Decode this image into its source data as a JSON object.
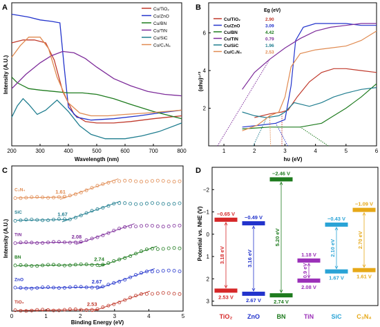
{
  "panels": {
    "A": {
      "letter": "A",
      "xlabel": "Wavelength (nm)",
      "ylabel": "Intensity (A.U.)",
      "xticks": [
        "200",
        "300",
        "400",
        "500",
        "600",
        "700",
        "800"
      ],
      "legend": [
        "Cu/TiO₂",
        "Cu/ZnO",
        "Cu/BN",
        "Cu/TiN",
        "Cu/SiC",
        "Cu/C₃N₄"
      ]
    },
    "B": {
      "letter": "B",
      "xlabel": "hυ (eV)",
      "ylabel": "(αhυ)¹ᐟ²",
      "xticks": [
        "1",
        "2",
        "3",
        "4",
        "5",
        "6"
      ],
      "yticks": [
        "2",
        "4",
        "6"
      ],
      "legend_header": "Eg (eV)",
      "legend": [
        {
          "name": "Cu/TiO₂",
          "eg": "2.90"
        },
        {
          "name": "Cu/ZnO",
          "eg": "3.09"
        },
        {
          "name": "Cu/BN",
          "eg": "4.42"
        },
        {
          "name": "Cu/TiN",
          "eg": "0.79"
        },
        {
          "name": "Cu/SiC",
          "eg": "1.96"
        },
        {
          "name": "Cu/C₃N₄",
          "eg": "2.53"
        }
      ]
    },
    "C": {
      "letter": "C",
      "xlabel": "Binding Energy (eV)",
      "ylabel": "Intensity (A.U.)",
      "xticks": [
        "0",
        "1",
        "2",
        "3",
        "4",
        "5"
      ]
    },
    "D": {
      "letter": "D",
      "ylabel": "Potential vs. NHE (V)",
      "yticks": [
        "−2",
        "−1",
        "0",
        "1",
        "2",
        "3"
      ]
    }
  },
  "chart_data": [
    {
      "panel": "A",
      "type": "line",
      "xlabel": "Wavelength (nm)",
      "ylabel": "Intensity (A.U.)",
      "xlim": [
        200,
        800
      ],
      "ylim": [
        0,
        1
      ],
      "series": [
        {
          "name": "Cu/TiO₂",
          "color": "#c0392b",
          "x": [
            200,
            240,
            280,
            320,
            350,
            380,
            420,
            460,
            500,
            560,
            620,
            700,
            800
          ],
          "y": [
            0.72,
            0.74,
            0.74,
            0.72,
            0.6,
            0.38,
            0.22,
            0.17,
            0.16,
            0.16,
            0.17,
            0.19,
            0.21
          ]
        },
        {
          "name": "Cu/ZnO",
          "color": "#2233cc",
          "x": [
            200,
            230,
            260,
            300,
            340,
            370,
            385,
            400,
            430,
            480,
            560,
            650,
            720,
            800
          ],
          "y": [
            0.92,
            0.91,
            0.9,
            0.88,
            0.87,
            0.86,
            0.55,
            0.27,
            0.2,
            0.18,
            0.19,
            0.21,
            0.23,
            0.25
          ]
        },
        {
          "name": "Cu/BN",
          "color": "#1e7b1e",
          "x": [
            200,
            220,
            260,
            300,
            350,
            400,
            450,
            500,
            560,
            620,
            700,
            800
          ],
          "y": [
            0.48,
            0.44,
            0.4,
            0.39,
            0.38,
            0.37,
            0.37,
            0.36,
            0.33,
            0.29,
            0.24,
            0.19
          ]
        },
        {
          "name": "Cu/TiN",
          "color": "#7d2b9a",
          "x": [
            200,
            250,
            300,
            340,
            380,
            420,
            460,
            500,
            560,
            620,
            680,
            740,
            800
          ],
          "y": [
            0.4,
            0.5,
            0.58,
            0.63,
            0.66,
            0.65,
            0.61,
            0.55,
            0.47,
            0.42,
            0.38,
            0.36,
            0.35
          ]
        },
        {
          "name": "Cu/SiC",
          "color": "#1f7d8f",
          "x": [
            200,
            220,
            240,
            260,
            290,
            320,
            360,
            400,
            440,
            480,
            530,
            600,
            660,
            720,
            800
          ],
          "y": [
            0.2,
            0.28,
            0.33,
            0.29,
            0.22,
            0.25,
            0.32,
            0.24,
            0.14,
            0.08,
            0.05,
            0.05,
            0.07,
            0.1,
            0.16
          ]
        },
        {
          "name": "Cu/C₃N₄",
          "color": "#e08a50",
          "x": [
            200,
            230,
            260,
            300,
            330,
            360,
            400,
            440,
            480,
            540,
            600,
            680,
            800
          ],
          "y": [
            0.62,
            0.7,
            0.76,
            0.76,
            0.68,
            0.48,
            0.3,
            0.23,
            0.21,
            0.21,
            0.22,
            0.23,
            0.25
          ]
        }
      ]
    },
    {
      "panel": "B",
      "type": "line",
      "xlabel": "hυ (eV)",
      "ylabel": "(αhυ)¹ᐟ²",
      "xlim": [
        0.5,
        6
      ],
      "ylim": [
        0,
        7.6
      ],
      "series": [
        {
          "name": "Cu/TiO₂",
          "color": "#c0392b",
          "eg": 2.9,
          "x": [
            2.0,
            2.5,
            2.9,
            3.1,
            3.4,
            3.8,
            4.2,
            4.6,
            5.0,
            5.5,
            6.0
          ],
          "y": [
            1.5,
            1.7,
            1.8,
            1.9,
            2.6,
            3.4,
            3.9,
            4.1,
            4.1,
            4.0,
            3.9
          ]
        },
        {
          "name": "Cu/ZnO",
          "color": "#2233cc",
          "eg": 3.09,
          "x": [
            1.6,
            2.2,
            2.7,
            3.0,
            3.2,
            3.35,
            3.6,
            4.0,
            4.5,
            5.0,
            5.5,
            6.0
          ],
          "y": [
            1.0,
            1.1,
            1.2,
            1.4,
            3.2,
            5.6,
            6.3,
            6.5,
            6.5,
            6.5,
            6.4,
            6.4
          ]
        },
        {
          "name": "Cu/BN",
          "color": "#1e7b1e",
          "eg": 4.42,
          "x": [
            1.6,
            2.5,
            3.5,
            4.2,
            4.6,
            5.0,
            5.5,
            6.0
          ],
          "y": [
            0.9,
            1.0,
            1.0,
            1.2,
            1.6,
            2.0,
            2.6,
            3.3
          ]
        },
        {
          "name": "Cu/TiN",
          "color": "#7d2b9a",
          "eg": 0.79,
          "x": [
            1.6,
            2.0,
            2.5,
            3.0,
            3.5,
            4.0,
            4.5,
            5.0,
            5.5,
            6.0
          ],
          "y": [
            3.0,
            3.9,
            4.6,
            5.2,
            5.7,
            6.1,
            6.3,
            6.4,
            6.5,
            6.5
          ]
        },
        {
          "name": "Cu/SiC",
          "color": "#1f7d8f",
          "eg": 1.96,
          "x": [
            1.6,
            2.0,
            2.4,
            2.8,
            3.0,
            3.3,
            3.8,
            4.2,
            4.6,
            5.0,
            5.5,
            6.0
          ],
          "y": [
            1.8,
            1.6,
            1.5,
            1.6,
            1.8,
            2.3,
            2.1,
            2.3,
            2.6,
            2.8,
            3.0,
            3.1
          ]
        },
        {
          "name": "Cu/C₃N₄",
          "color": "#e08a50",
          "eg": 2.53,
          "x": [
            1.6,
            2.1,
            2.5,
            2.8,
            3.0,
            3.2,
            3.5,
            4.0,
            4.5,
            5.0,
            5.5,
            6.0
          ],
          "y": [
            0.8,
            1.1,
            1.6,
            1.8,
            2.6,
            4.2,
            4.9,
            5.1,
            5.2,
            5.3,
            5.6,
            6.1
          ]
        }
      ]
    },
    {
      "panel": "C",
      "type": "scatter",
      "xlabel": "Binding Energy (eV)",
      "ylabel": "Intensity (A.U.)",
      "xlim": [
        0,
        5
      ],
      "series": [
        {
          "name": "C₃N₄",
          "color": "#e08a50",
          "value": 1.61
        },
        {
          "name": "SiC",
          "color": "#1f7d8f",
          "value": 1.67
        },
        {
          "name": "TiN",
          "color": "#7d2b9a",
          "value": 2.08
        },
        {
          "name": "BN",
          "color": "#1e7b1e",
          "value": 2.74
        },
        {
          "name": "ZnO",
          "color": "#2233cc",
          "value": 2.67
        },
        {
          "name": "TiO₂",
          "color": "#c0392b",
          "value": 2.53
        }
      ]
    },
    {
      "panel": "D",
      "type": "bar",
      "ylabel": "Potential vs. NHE (V)",
      "ylim": [
        -3,
        3.2
      ],
      "categories": [
        "TiO₂",
        "ZnO",
        "BN",
        "TiN",
        "SiC",
        "C₃N₄"
      ],
      "colors": [
        "#d62728",
        "#2233cc",
        "#1e7b1e",
        "#9b30b8",
        "#29a3d6",
        "#e6a817"
      ],
      "cb": [
        -0.65,
        -0.49,
        -2.46,
        1.18,
        -0.43,
        -1.09
      ],
      "vb": [
        2.53,
        2.67,
        2.74,
        2.08,
        1.67,
        1.61
      ],
      "cb_labels": [
        "−0.65 V",
        "−0.49 V",
        "−2.46 V",
        "1.18 V",
        "−0.43 V",
        "−1.09 V"
      ],
      "vb_labels": [
        "2.53 V",
        "2.67 V",
        "2.74 V",
        "2.08 V",
        "1.67 V",
        "1.61 V"
      ],
      "gap_labels": [
        "3.18 eV",
        "3.16 eV",
        "5.20 eV",
        "0.9 eV",
        "2.10 eV",
        "2.70 eV"
      ]
    }
  ]
}
